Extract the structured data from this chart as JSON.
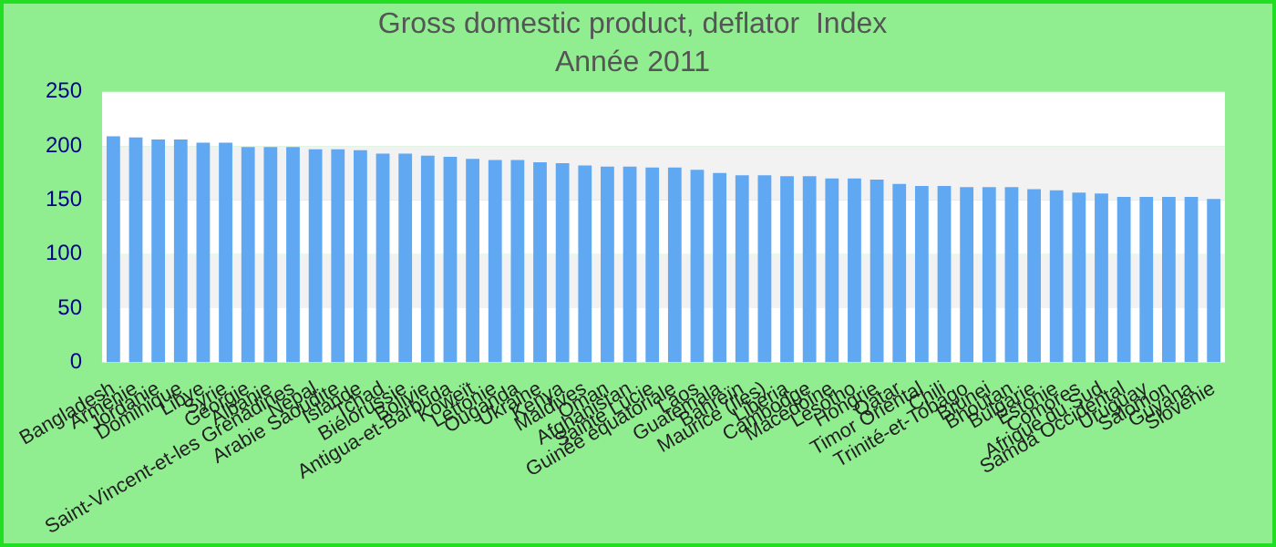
{
  "chart_data": {
    "type": "bar",
    "title": "Gross domestic product, deflator  Index",
    "subtitle": "Année 2011",
    "categories": [
      "Bangladesh",
      "Arménie",
      "Jordanie",
      "Dominique",
      "Libye",
      "Syrie",
      "Géorgie",
      "Albanie",
      "Saint-Vincent-et-les Grenadines",
      "Népal",
      "Arabie Saoudite",
      "Islande",
      "Tchad",
      "Biélorussie",
      "Bolivie",
      "Antigua-et-Barbuda",
      "Koweït",
      "Lettonie",
      "Ouganda",
      "Ukraine",
      "Kenya",
      "Maldives",
      "Oman",
      "Afghanistan",
      "Sainte Lucie",
      "Guinée équatoriale",
      "Laos",
      "Guatemala",
      "Bahreïn",
      "Maurice (Iles)",
      "Libéria",
      "Cambodge",
      "Macédoine",
      "Lesotho",
      "Hongrie",
      "Qatar",
      "Timor Oriental",
      "Chili",
      "Trinité-et-Tobago",
      "Brunei",
      "Bhoutan",
      "Bulgarie",
      "Estonie",
      "Comores",
      "Afrique du Sud",
      "Samoa Occidental",
      "Uruguay",
      "Salomon",
      "Guyana",
      "Slovénie"
    ],
    "values": [
      209,
      208,
      206,
      206,
      203,
      203,
      199,
      199,
      199,
      197,
      197,
      196,
      193,
      193,
      191,
      190,
      188,
      187,
      187,
      185,
      184,
      182,
      181,
      181,
      180,
      180,
      178,
      175,
      173,
      173,
      172,
      172,
      170,
      170,
      169,
      165,
      163,
      163,
      162,
      162,
      162,
      160,
      159,
      157,
      156,
      153,
      153,
      153,
      153,
      151
    ],
    "color": "#60a8f2",
    "ylim": [
      0,
      250
    ],
    "yticks": [
      0,
      50,
      100,
      150,
      200,
      250
    ]
  }
}
